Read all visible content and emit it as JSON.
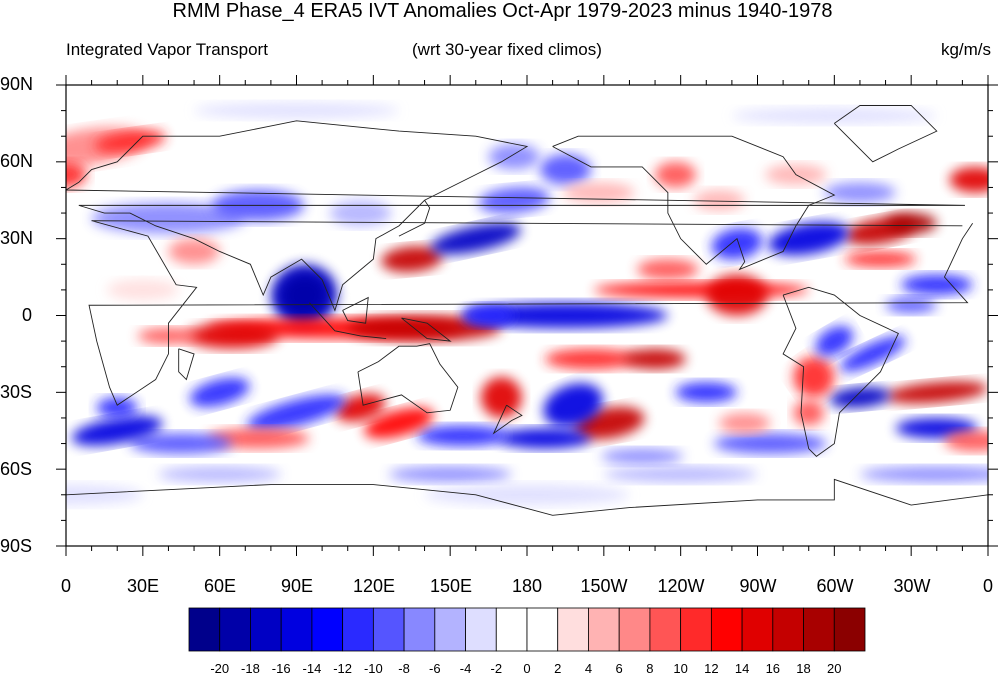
{
  "title": "RMM Phase_4 ERA5 IVT Anomalies Oct-Apr 1979-2023 minus 1940-1978",
  "subtitle_left": "Integrated Vapor Transport",
  "subtitle_center": "(wrt 30-year fixed climos)",
  "subtitle_right": "kg/m/s",
  "lat_labels": [
    "90N",
    "60N",
    "30N",
    "0",
    "30S",
    "60S",
    "90S"
  ],
  "lon_labels": [
    "0",
    "30E",
    "60E",
    "90E",
    "120E",
    "150E",
    "180",
    "150W",
    "120W",
    "90W",
    "60W",
    "30W",
    "0"
  ],
  "colorbar": {
    "labels": [
      "-20",
      "-18",
      "-16",
      "-14",
      "-12",
      "-10",
      "-8",
      "-6",
      "-4",
      "-2",
      "0",
      "2",
      "4",
      "6",
      "8",
      "10",
      "12",
      "14",
      "16",
      "18",
      "20"
    ],
    "colors": [
      "#00008b",
      "#0000a8",
      "#0000c4",
      "#0000e0",
      "#0000ff",
      "#2a2aff",
      "#5555ff",
      "#8888ff",
      "#b3b3ff",
      "#dedeff",
      "#ffffff",
      "#ffffff",
      "#ffdede",
      "#ffb3b3",
      "#ff8888",
      "#ff5555",
      "#ff2a2a",
      "#ff0000",
      "#e00000",
      "#c40000",
      "#a80000",
      "#8b0000"
    ]
  }
}
